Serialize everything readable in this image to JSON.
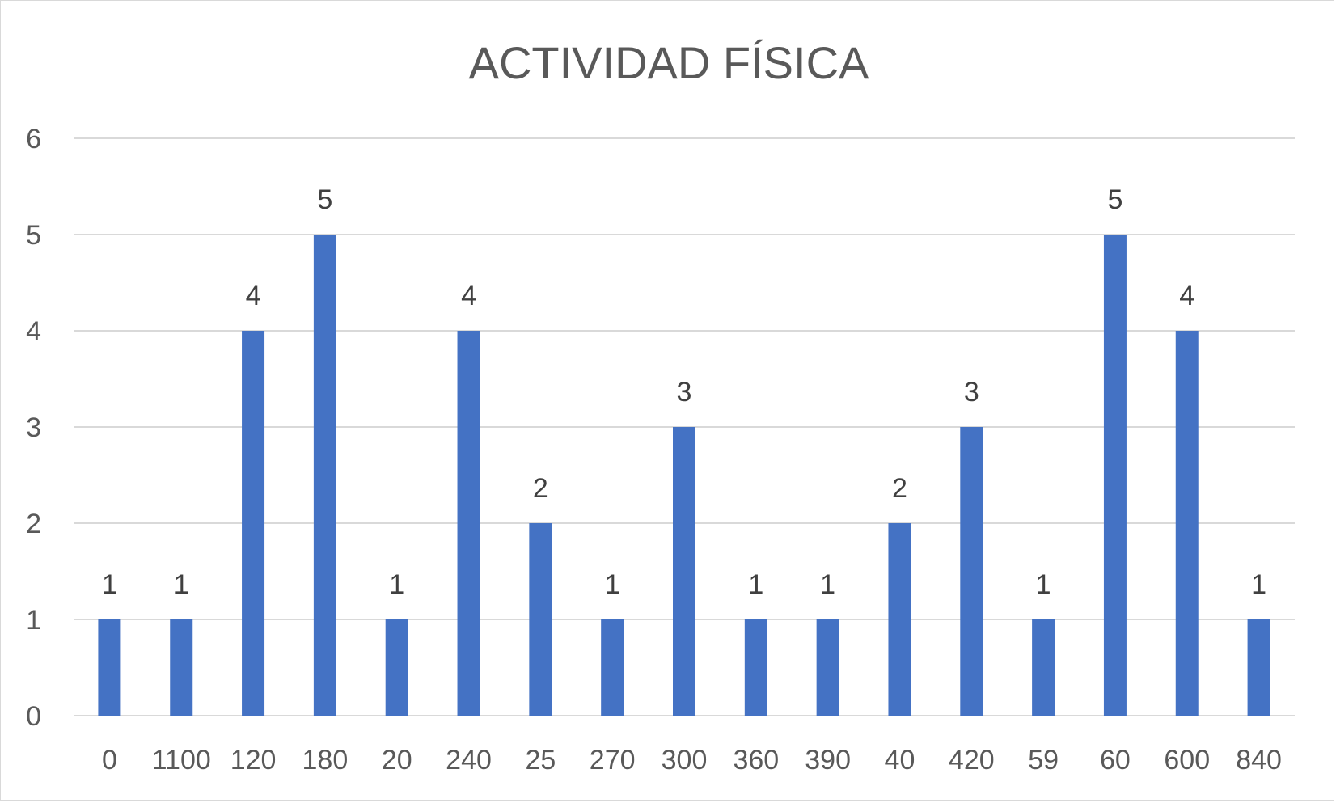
{
  "chart_data": {
    "type": "bar",
    "title": "ACTIVIDAD FÍSICA",
    "xlabel": "",
    "ylabel": "",
    "categories": [
      "0",
      "1100",
      "120",
      "180",
      "20",
      "240",
      "25",
      "270",
      "300",
      "360",
      "390",
      "40",
      "420",
      "59",
      "60",
      "600",
      "840"
    ],
    "values": [
      1,
      1,
      4,
      5,
      1,
      4,
      2,
      1,
      3,
      1,
      1,
      2,
      3,
      1,
      5,
      4,
      1
    ],
    "ylim": [
      0,
      6
    ],
    "yticks": [
      0,
      1,
      2,
      3,
      4,
      5,
      6
    ],
    "grid": true,
    "legend": "none",
    "data_labels": true,
    "bar_color": "#4472C4"
  }
}
